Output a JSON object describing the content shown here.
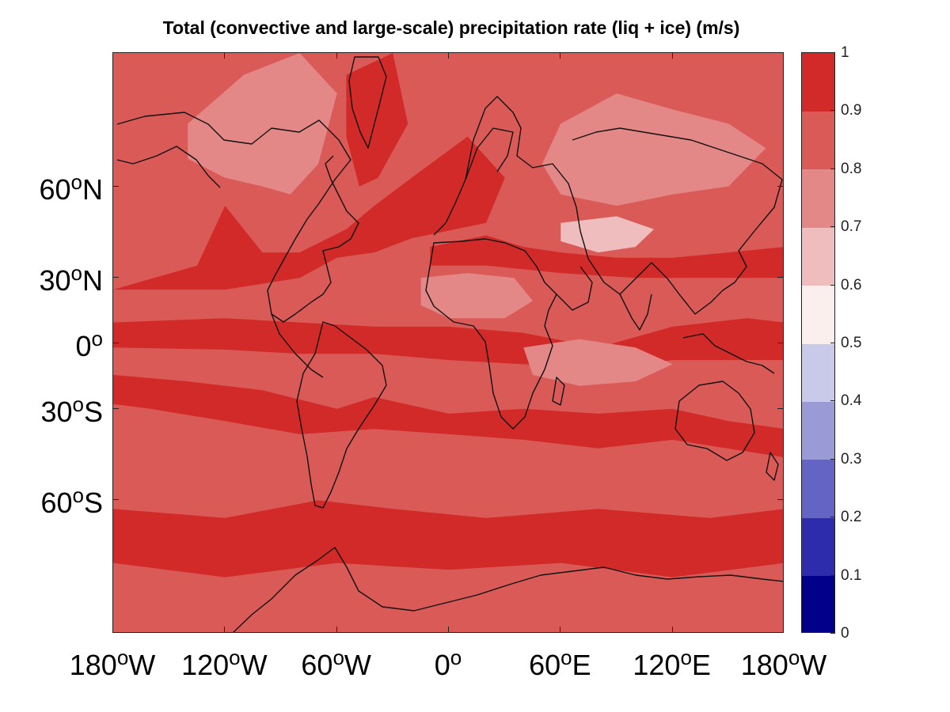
{
  "title": "Total (convective and large-scale) precipitation rate (liq + ice) (m/s)",
  "axes": {
    "y_ticks": [
      {
        "value": 60,
        "deg": "60",
        "hemi": "N"
      },
      {
        "value": 30,
        "deg": "30",
        "hemi": "N"
      },
      {
        "value": 0,
        "deg": "0",
        "hemi": ""
      },
      {
        "value": -30,
        "deg": "30",
        "hemi": "S"
      },
      {
        "value": -60,
        "deg": "60",
        "hemi": "S"
      }
    ],
    "x_ticks": [
      {
        "value": -180,
        "deg": "180",
        "hemi": "W"
      },
      {
        "value": -120,
        "deg": "120",
        "hemi": "W"
      },
      {
        "value": -60,
        "deg": "60",
        "hemi": "W"
      },
      {
        "value": 0,
        "deg": "0",
        "hemi": ""
      },
      {
        "value": 60,
        "deg": "60",
        "hemi": "E"
      },
      {
        "value": 120,
        "deg": "120",
        "hemi": "E"
      },
      {
        "value": 180,
        "deg": "180",
        "hemi": "W"
      }
    ],
    "degree_symbol": "o"
  },
  "colorbar": {
    "ticks": [
      "0",
      "0.1",
      "0.2",
      "0.3",
      "0.4",
      "0.5",
      "0.6",
      "0.7",
      "0.8",
      "0.9",
      "1"
    ],
    "colors": [
      "#00008b",
      "#2c2cad",
      "#6464c4",
      "#9a9ad6",
      "#c9c9e9",
      "#fbeeee",
      "#efbdbd",
      "#e48787",
      "#da5a58",
      "#d12a28"
    ]
  },
  "chart_data": {
    "type": "heatmap",
    "projection": "mercator",
    "title": "Total (convective and large-scale) precipitation rate (liq + ice) (m/s)",
    "lon_range": [
      -180,
      180
    ],
    "lat_range": [
      -80,
      80
    ],
    "value_range": [
      0,
      1
    ],
    "levels": [
      0,
      0.1,
      0.2,
      0.3,
      0.4,
      0.5,
      0.6,
      0.7,
      0.8,
      0.9,
      1
    ],
    "regions": [
      {
        "name": "background",
        "value": 0.85
      },
      {
        "name": "pacific-north-band",
        "value": 0.95,
        "poly": [
          [
            -180,
            25
          ],
          [
            -135,
            35
          ],
          [
            -120,
            55
          ],
          [
            -100,
            40
          ],
          [
            -80,
            40
          ],
          [
            -55,
            48
          ],
          [
            -40,
            55
          ],
          [
            -20,
            62
          ],
          [
            10,
            70
          ],
          [
            30,
            62
          ],
          [
            20,
            50
          ],
          [
            -20,
            45
          ],
          [
            -40,
            40
          ],
          [
            -60,
            38
          ],
          [
            -80,
            30
          ],
          [
            -120,
            25
          ],
          [
            -180,
            25
          ]
        ]
      },
      {
        "name": "asia-mid-band",
        "value": 0.95,
        "poly": [
          [
            -10,
            42
          ],
          [
            20,
            46
          ],
          [
            40,
            42
          ],
          [
            60,
            40
          ],
          [
            90,
            38
          ],
          [
            120,
            38
          ],
          [
            150,
            40
          ],
          [
            180,
            42
          ],
          [
            180,
            30
          ],
          [
            140,
            30
          ],
          [
            100,
            30
          ],
          [
            60,
            32
          ],
          [
            20,
            35
          ],
          [
            -10,
            35
          ],
          [
            -10,
            42
          ]
        ]
      },
      {
        "name": "equatorial-band",
        "value": 0.95,
        "poly": [
          [
            -180,
            10
          ],
          [
            -120,
            12
          ],
          [
            -80,
            10
          ],
          [
            -40,
            8
          ],
          [
            0,
            8
          ],
          [
            40,
            5
          ],
          [
            80,
            -2
          ],
          [
            120,
            8
          ],
          [
            160,
            12
          ],
          [
            180,
            10
          ],
          [
            180,
            -8
          ],
          [
            120,
            -8
          ],
          [
            80,
            -12
          ],
          [
            40,
            -10
          ],
          [
            0,
            -8
          ],
          [
            -40,
            -5
          ],
          [
            -80,
            -5
          ],
          [
            -120,
            -3
          ],
          [
            -180,
            -2
          ],
          [
            -180,
            10
          ]
        ]
      },
      {
        "name": "south-pacific-band",
        "value": 0.95,
        "poly": [
          [
            -180,
            -15
          ],
          [
            -140,
            -18
          ],
          [
            -100,
            -22
          ],
          [
            -60,
            -30
          ],
          [
            -40,
            -25
          ],
          [
            0,
            -32
          ],
          [
            40,
            -30
          ],
          [
            80,
            -32
          ],
          [
            120,
            -30
          ],
          [
            150,
            -35
          ],
          [
            180,
            -38
          ],
          [
            180,
            -48
          ],
          [
            120,
            -42
          ],
          [
            80,
            -45
          ],
          [
            40,
            -42
          ],
          [
            0,
            -40
          ],
          [
            -40,
            -38
          ],
          [
            -80,
            -40
          ],
          [
            -120,
            -35
          ],
          [
            -160,
            -30
          ],
          [
            -180,
            -28
          ],
          [
            -180,
            -15
          ]
        ]
      },
      {
        "name": "antarctic-coast-band",
        "value": 0.95,
        "poly": [
          [
            -180,
            -62
          ],
          [
            -120,
            -64
          ],
          [
            -70,
            -60
          ],
          [
            -30,
            -62
          ],
          [
            20,
            -64
          ],
          [
            80,
            -62
          ],
          [
            140,
            -64
          ],
          [
            180,
            -62
          ],
          [
            180,
            -72
          ],
          [
            120,
            -74
          ],
          [
            60,
            -72
          ],
          [
            0,
            -73
          ],
          [
            -60,
            -72
          ],
          [
            -120,
            -74
          ],
          [
            -180,
            -72
          ],
          [
            -180,
            -62
          ]
        ]
      },
      {
        "name": "southern-ocean-mid",
        "value": 0.85,
        "poly": [
          [
            -180,
            -48
          ],
          [
            -100,
            -46
          ],
          [
            -40,
            -48
          ],
          [
            40,
            -50
          ],
          [
            120,
            -48
          ],
          [
            180,
            -50
          ],
          [
            180,
            -60
          ],
          [
            100,
            -58
          ],
          [
            40,
            -60
          ],
          [
            -40,
            -58
          ],
          [
            -100,
            -60
          ],
          [
            -180,
            -58
          ],
          [
            -180,
            -48
          ]
        ]
      },
      {
        "name": "arctic-canada-light",
        "value": 0.75,
        "poly": [
          [
            -140,
            72
          ],
          [
            -110,
            78
          ],
          [
            -80,
            80
          ],
          [
            -60,
            76
          ],
          [
            -70,
            65
          ],
          [
            -85,
            58
          ],
          [
            -100,
            60
          ],
          [
            -120,
            62
          ],
          [
            -140,
            66
          ],
          [
            -140,
            72
          ]
        ]
      },
      {
        "name": "siberia-light",
        "value": 0.75,
        "poly": [
          [
            60,
            72
          ],
          [
            90,
            76
          ],
          [
            120,
            74
          ],
          [
            150,
            72
          ],
          [
            170,
            68
          ],
          [
            150,
            60
          ],
          [
            120,
            58
          ],
          [
            90,
            55
          ],
          [
            60,
            58
          ],
          [
            50,
            65
          ],
          [
            60,
            72
          ]
        ]
      },
      {
        "name": "asia-interior-light",
        "value": 0.65,
        "poly": [
          [
            60,
            50
          ],
          [
            90,
            52
          ],
          [
            110,
            48
          ],
          [
            100,
            42
          ],
          [
            80,
            40
          ],
          [
            60,
            44
          ],
          [
            60,
            50
          ]
        ]
      },
      {
        "name": "indian-ocean-light",
        "value": 0.75,
        "poly": [
          [
            40,
            -2
          ],
          [
            70,
            2
          ],
          [
            100,
            -2
          ],
          [
            120,
            -10
          ],
          [
            100,
            -18
          ],
          [
            70,
            -20
          ],
          [
            45,
            -15
          ],
          [
            40,
            -2
          ]
        ]
      },
      {
        "name": "north-africa-light",
        "value": 0.75,
        "poly": [
          [
            -15,
            30
          ],
          [
            10,
            32
          ],
          [
            35,
            30
          ],
          [
            45,
            20
          ],
          [
            30,
            12
          ],
          [
            0,
            12
          ],
          [
            -15,
            18
          ],
          [
            -15,
            30
          ]
        ]
      },
      {
        "name": "greenland-dark",
        "value": 0.95,
        "poly": [
          [
            -55,
            78
          ],
          [
            -30,
            80
          ],
          [
            -22,
            72
          ],
          [
            -38,
            62
          ],
          [
            -48,
            60
          ],
          [
            -55,
            70
          ],
          [
            -55,
            78
          ]
        ]
      },
      {
        "name": "antarctica-interior",
        "value": 0.85,
        "poly": [
          [
            -180,
            -75
          ],
          [
            -60,
            -76
          ],
          [
            0,
            -76
          ],
          [
            80,
            -75
          ],
          [
            180,
            -76
          ],
          [
            180,
            -80
          ],
          [
            -180,
            -80
          ],
          [
            -180,
            -75
          ]
        ]
      }
    ]
  }
}
